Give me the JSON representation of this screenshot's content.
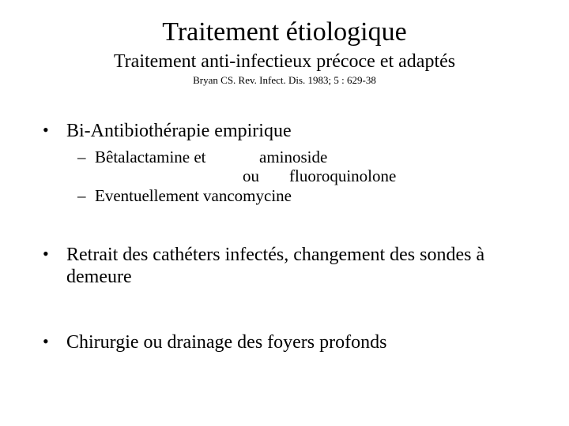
{
  "colors": {
    "background": "#ffffff",
    "text": "#000000"
  },
  "title": "Traitement étiologique",
  "subtitle": "Traitement anti-infectieux précoce et adaptés",
  "citation": "Bryan CS. Rev. Infect. Dis. 1983; 5 : 629-38",
  "bullets": {
    "b1": {
      "text": "Bi-Antibiothérapie empirique",
      "sub": {
        "row1": {
          "left": "Bêtalactamine et",
          "right": "aminoside"
        },
        "row2": {
          "left_indent": "ou",
          "right": "fluoroquinolone"
        },
        "s2": "Eventuellement vancomycine"
      }
    },
    "b2": {
      "text": "Retrait des cathéters infectés, changement des sondes à demeure"
    },
    "b3": {
      "text": "Chirurgie ou drainage des foyers profonds"
    }
  },
  "typography": {
    "font_family": "Times New Roman",
    "title_size_pt": 34,
    "subtitle_size_pt": 24,
    "citation_size_pt": 13,
    "body_size_pt": 24,
    "sub_size_pt": 21
  }
}
